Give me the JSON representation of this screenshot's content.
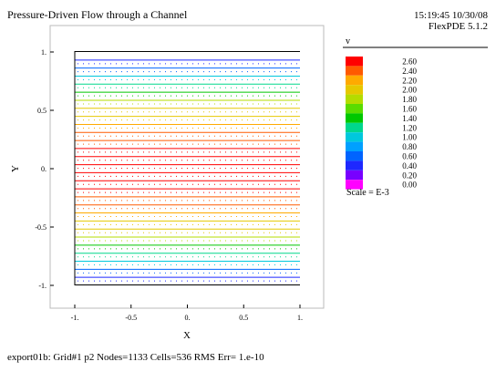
{
  "title": "Pressure-Driven Flow through a Channel",
  "timestamp": "15:19:45 10/30/08",
  "software": "FlexPDE 5.1.2",
  "footer": "export01b:  Grid#1  p2  Nodes=1133 Cells=536 RMS Err= 1.e-10",
  "chart_data": {
    "type": "contour",
    "title": "Pressure-Driven Flow through a Channel",
    "xlabel": "X",
    "ylabel": "Y",
    "xlim": [
      -1,
      1
    ],
    "ylim": [
      -1,
      1
    ],
    "x_ticks": [
      "-1.",
      "-0.5",
      "0.",
      "0.5",
      "1."
    ],
    "y_ticks": [
      "1.",
      "0.5",
      "0.",
      "-0.5",
      "-1."
    ],
    "x_tick_values": [
      -1,
      -0.5,
      0,
      0.5,
      1
    ],
    "y_tick_values": [
      1,
      0.5,
      0,
      -0.5,
      -1
    ],
    "variable": "v",
    "scale_label": "Scale = E-3",
    "legend": {
      "levels": [
        "2.60",
        "2.40",
        "2.20",
        "2.00",
        "1.80",
        "1.60",
        "1.40",
        "1.20",
        "1.00",
        "0.80",
        "0.60",
        "0.40",
        "0.20",
        "0.00"
      ],
      "colors": [
        "#ff0000",
        "#ff5a00",
        "#ffaa00",
        "#e6c800",
        "#b4dc00",
        "#5adc00",
        "#00c800",
        "#00d78c",
        "#00c8dc",
        "#00a0ff",
        "#0064ff",
        "#1e28ff",
        "#7800ff",
        "#ff00ff"
      ]
    },
    "contours": {
      "description": "horizontal isolines of v across the channel; v(y) = 2.6*(1 - y^2)",
      "vmax": 2.6,
      "line_count": 28
    }
  }
}
